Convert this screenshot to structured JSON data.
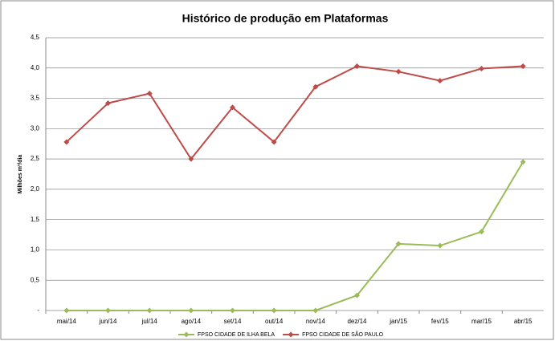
{
  "chart_data": {
    "type": "line",
    "title": "Histórico de produção em Plataformas",
    "y_label": "Milhões m³/dia",
    "categories": [
      "mai/14",
      "jun/14",
      "jul/14",
      "ago/14",
      "set/14",
      "out/14",
      "nov/14",
      "dez/14",
      "jan/15",
      "fev/15",
      "mar/15",
      "abr/15"
    ],
    "series": [
      {
        "name": "FPSO CIDADE DE ILHA BELA",
        "color": "#9bbb59",
        "values": [
          0,
          0,
          0,
          0,
          0,
          0,
          0,
          0.25,
          1.1,
          1.07,
          1.3,
          2.45
        ]
      },
      {
        "name": "FPSO CIDADE DE SÃO PAULO",
        "color": "#be4b48",
        "values": [
          2.78,
          3.42,
          3.58,
          2.5,
          3.35,
          2.78,
          3.69,
          4.03,
          3.94,
          3.79,
          3.99,
          4.03
        ]
      }
    ],
    "ylim": [
      0,
      4.5
    ],
    "yticks": [
      {
        "value": 0,
        "label": "-"
      },
      {
        "value": 0.5,
        "label": "0,5"
      },
      {
        "value": 1,
        "label": "1,0"
      },
      {
        "value": 1.5,
        "label": "1,5"
      },
      {
        "value": 2,
        "label": "2,0"
      },
      {
        "value": 2.5,
        "label": "2,5"
      },
      {
        "value": 3,
        "label": "3,0"
      },
      {
        "value": 3.5,
        "label": "3,5"
      },
      {
        "value": 4,
        "label": "4,0"
      },
      {
        "value": 4.5,
        "label": "4,5"
      }
    ],
    "grid": true,
    "legend": "bottom"
  }
}
